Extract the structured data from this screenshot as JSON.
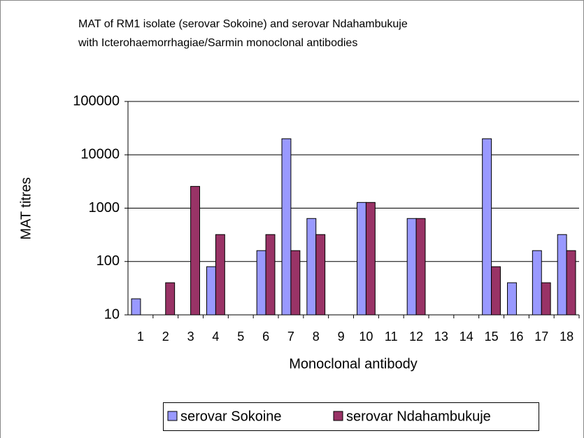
{
  "chart_data": {
    "type": "bar",
    "title": [
      "MAT of RM1 isolate (serovar Sokoine) and serovar Ndahambukuje",
      "with Icterohaemorrhagiae/Sarmin monoclonal antibodies"
    ],
    "x_label": "Monoclonal antibody",
    "y_label": "MAT titres",
    "categories": [
      "1",
      "2",
      "3",
      "4",
      "5",
      "6",
      "7",
      "8",
      "9",
      "10",
      "11",
      "12",
      "13",
      "14",
      "15",
      "16",
      "17",
      "18"
    ],
    "series": [
      {
        "name": "serovar Sokoine",
        "color": "#9999ff",
        "values": [
          20,
          null,
          null,
          80,
          null,
          160,
          20000,
          640,
          null,
          1280,
          null,
          640,
          null,
          null,
          20000,
          40,
          160,
          320
        ]
      },
      {
        "name": "serovar Ndahambukuje",
        "color": "#993366",
        "values": [
          null,
          40,
          2560,
          320,
          null,
          320,
          160,
          320,
          null,
          1280,
          null,
          640,
          null,
          null,
          80,
          null,
          40,
          160
        ]
      }
    ],
    "log_scale": true,
    "ylim": [
      10,
      100000
    ],
    "yticks": [
      10,
      100,
      1000,
      10000,
      100000
    ],
    "grid": true,
    "legend": "bottom"
  }
}
